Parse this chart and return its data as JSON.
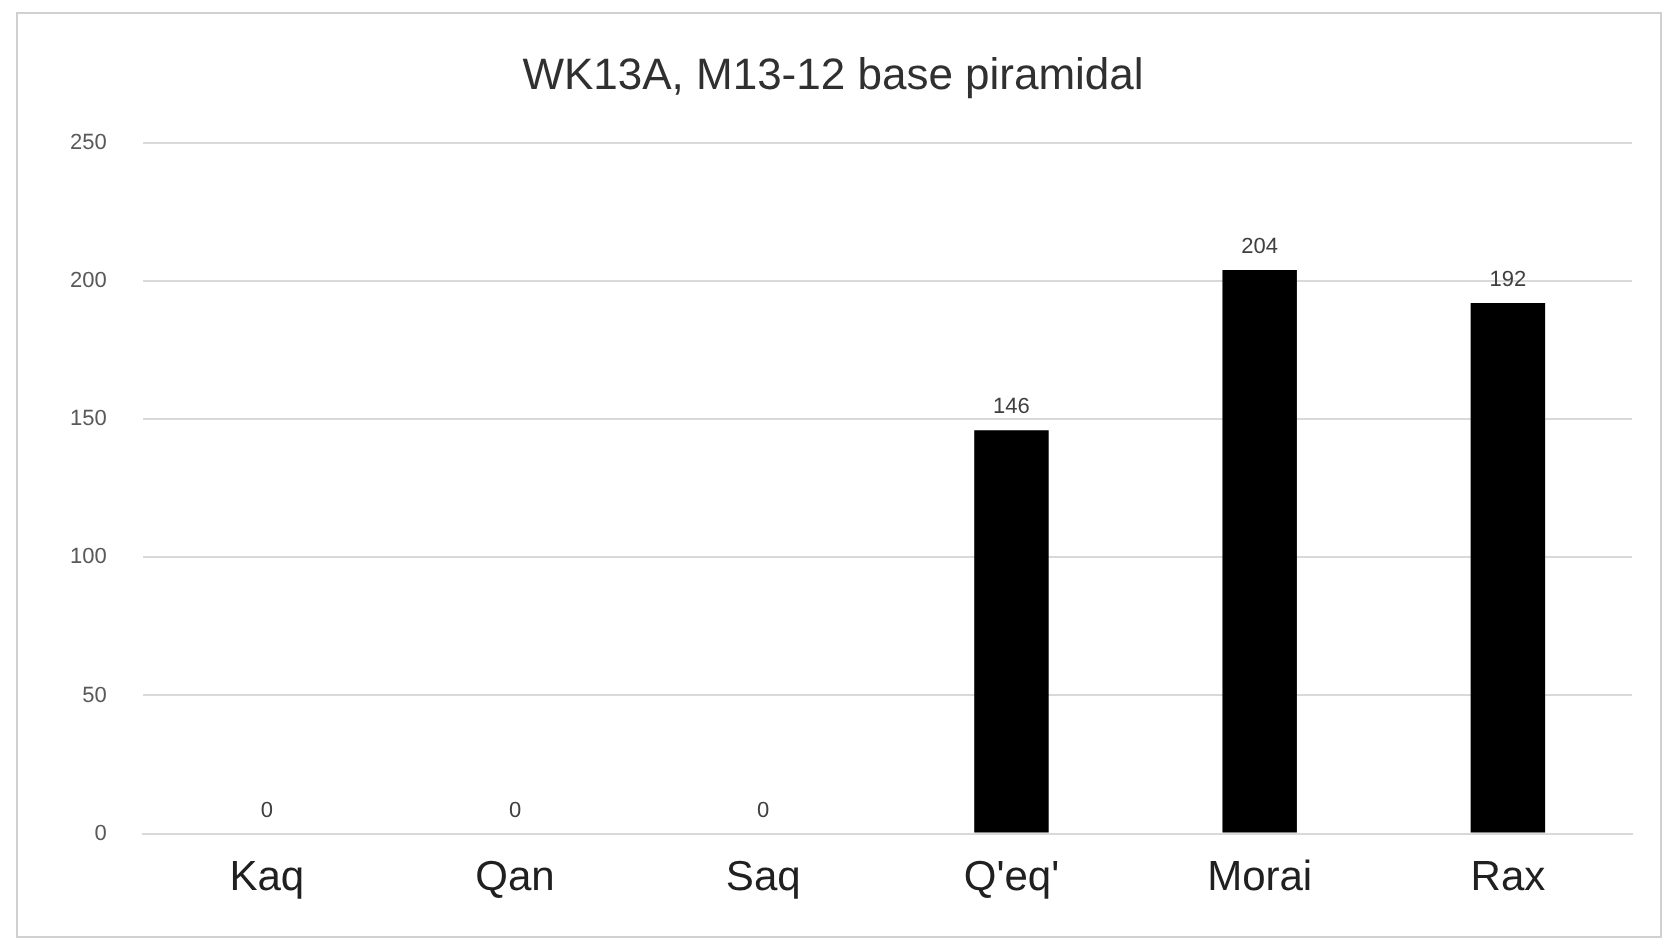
{
  "chart_data": {
    "type": "bar",
    "title": "WK13A, M13-12 base piramidal",
    "categories": [
      "Kaq",
      "Qan",
      "Saq",
      "Q'eq'",
      "Morai",
      "Rax"
    ],
    "values": [
      0,
      0,
      0,
      146,
      204,
      192
    ],
    "color": "#000000",
    "ylim": [
      0,
      250
    ],
    "yticks": [
      0,
      50,
      100,
      150,
      200,
      250
    ],
    "grid": "y",
    "data_labels": true
  }
}
